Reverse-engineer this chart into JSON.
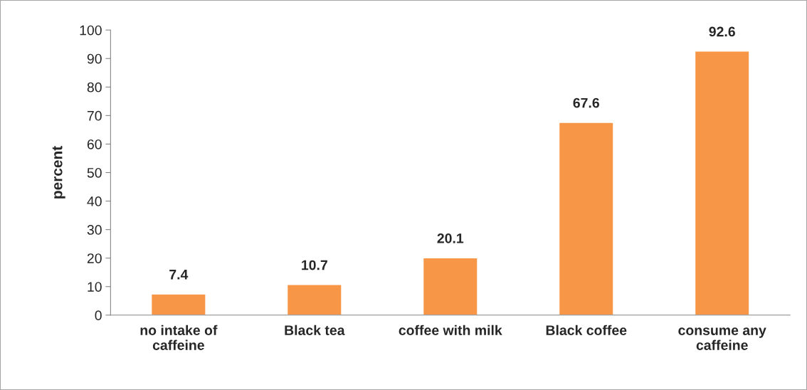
{
  "chart_data": {
    "type": "bar",
    "ylabel": "percent",
    "categories": [
      "no intake of\ncaffeine",
      "Black tea",
      "coffee with milk",
      "Black coffee",
      "consume any\ncaffeine"
    ],
    "values": [
      7.4,
      10.7,
      20.1,
      67.6,
      92.6
    ],
    "color": "#f79646",
    "ylim": [
      0,
      100
    ],
    "yticks": [
      0,
      10,
      20,
      30,
      40,
      50,
      60,
      70,
      80,
      90,
      100
    ],
    "grid": false,
    "data_labels": true
  }
}
